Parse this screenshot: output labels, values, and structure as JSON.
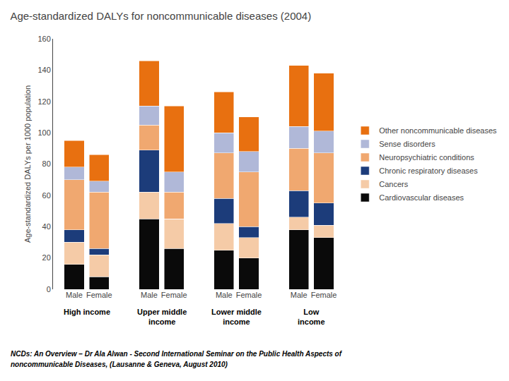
{
  "chart_data": {
    "type": "bar",
    "title": "Age-standardized DALYs for noncommunicable diseases (2004)",
    "ylabel": "Age-standardized DALYs per 1000 population",
    "categories": [
      "Male",
      "Female",
      "Male",
      "Female",
      "Male",
      "Female",
      "Male",
      "Female"
    ],
    "groups": [
      "High income",
      "Upper middle\nincome",
      "Lower middle\nincome",
      "Low\nincome"
    ],
    "series": [
      {
        "name": "Cardiovascular diseases",
        "color": "#0a0a0a",
        "values": [
          16,
          8,
          45,
          26,
          25,
          20,
          38,
          33
        ]
      },
      {
        "name": "Cancers",
        "color": "#f5cba7",
        "values": [
          14,
          14,
          17,
          19,
          17,
          13,
          8,
          8
        ]
      },
      {
        "name": "Chronic respiratory diseases",
        "color": "#1c3c7a",
        "values": [
          8,
          4,
          27,
          0,
          16,
          7,
          17,
          14
        ]
      },
      {
        "name": "Neuropsychiatric conditions",
        "color": "#f0a870",
        "values": [
          32,
          36,
          16,
          17,
          29,
          35,
          27,
          32
        ]
      },
      {
        "name": "Sense disorders",
        "color": "#b0b8d8",
        "values": [
          8,
          7,
          12,
          13,
          13,
          13,
          14,
          14
        ]
      },
      {
        "name": "Other noncommunicable diseases",
        "color": "#e87010",
        "values": [
          17,
          17,
          29,
          42,
          26,
          22,
          39,
          37
        ]
      }
    ],
    "ylim": [
      0,
      160
    ],
    "yticks": [
      0,
      20,
      40,
      60,
      80,
      100,
      120,
      140,
      160
    ],
    "stacked": true,
    "grid": false,
    "legend": "right",
    "annotations": [
      "NCDs: An Overview – Dr Ala Alwan - Second International Seminar on the Public Health Aspects of",
      "noncommunicable Diseases, (Lausanne & Geneva, August 2010)"
    ]
  }
}
